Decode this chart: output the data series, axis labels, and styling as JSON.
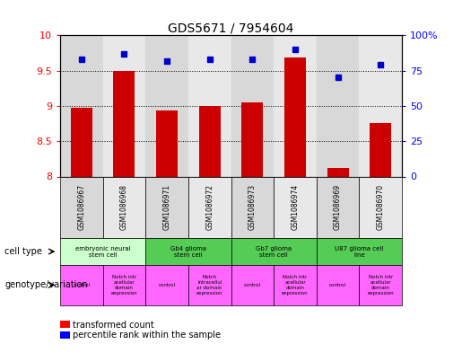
{
  "title": "GDS5671 / 7954604",
  "samples": [
    "GSM1086967",
    "GSM1086968",
    "GSM1086971",
    "GSM1086972",
    "GSM1086973",
    "GSM1086974",
    "GSM1086969",
    "GSM1086970"
  ],
  "red_values": [
    8.97,
    9.5,
    8.93,
    9.0,
    9.05,
    9.69,
    8.12,
    8.76
  ],
  "blue_values": [
    83,
    87,
    82,
    83,
    83,
    90,
    70,
    79
  ],
  "ylim_left": [
    8.0,
    10.0
  ],
  "ylim_right": [
    0,
    100
  ],
  "yticks_left": [
    8.0,
    8.5,
    9.0,
    9.5,
    10.0
  ],
  "yticks_right": [
    0,
    25,
    50,
    75,
    100
  ],
  "ytick_labels_left": [
    "8",
    "8.5",
    "9",
    "9.5",
    "10"
  ],
  "ytick_labels_right": [
    "0",
    "25",
    "50",
    "75",
    "100%"
  ],
  "cell_types": [
    {
      "label": "embryonic neural\nstem cell",
      "start": 0,
      "end": 2,
      "color": "#ccffcc"
    },
    {
      "label": "Gb4 glioma\nstem cell",
      "start": 2,
      "end": 4,
      "color": "#55cc55"
    },
    {
      "label": "Gb7 glioma\nstem cell",
      "start": 4,
      "end": 6,
      "color": "#55cc55"
    },
    {
      "label": "U87 glioma cell\nline",
      "start": 6,
      "end": 8,
      "color": "#55cc55"
    }
  ],
  "genotypes": [
    {
      "label": "control",
      "start": 0,
      "end": 1
    },
    {
      "label": "Notch intr\nacellular\ndomain\nexpression",
      "start": 1,
      "end": 2
    },
    {
      "label": "control",
      "start": 2,
      "end": 3
    },
    {
      "label": "Notch\nintracellul\nar domain\nexpression",
      "start": 3,
      "end": 4
    },
    {
      "label": "control",
      "start": 4,
      "end": 5
    },
    {
      "label": "Notch intr\nacellular\ndomain\nexpression",
      "start": 5,
      "end": 6
    },
    {
      "label": "control",
      "start": 6,
      "end": 7
    },
    {
      "label": "Notch intr\nacellular\ndomain\nexpression",
      "start": 7,
      "end": 8
    }
  ],
  "bar_color": "#cc0000",
  "dot_color": "#0000cc",
  "bar_bottom": 8.0,
  "legend_red_label": "transformed count",
  "legend_blue_label": "percentile rank within the sample",
  "col_bg_even": "#d8d8d8",
  "col_bg_odd": "#e8e8e8",
  "genotype_color": "#ff66ff",
  "cell_type_color_embryonic": "#ccffcc",
  "cell_type_color_other": "#55cc55"
}
